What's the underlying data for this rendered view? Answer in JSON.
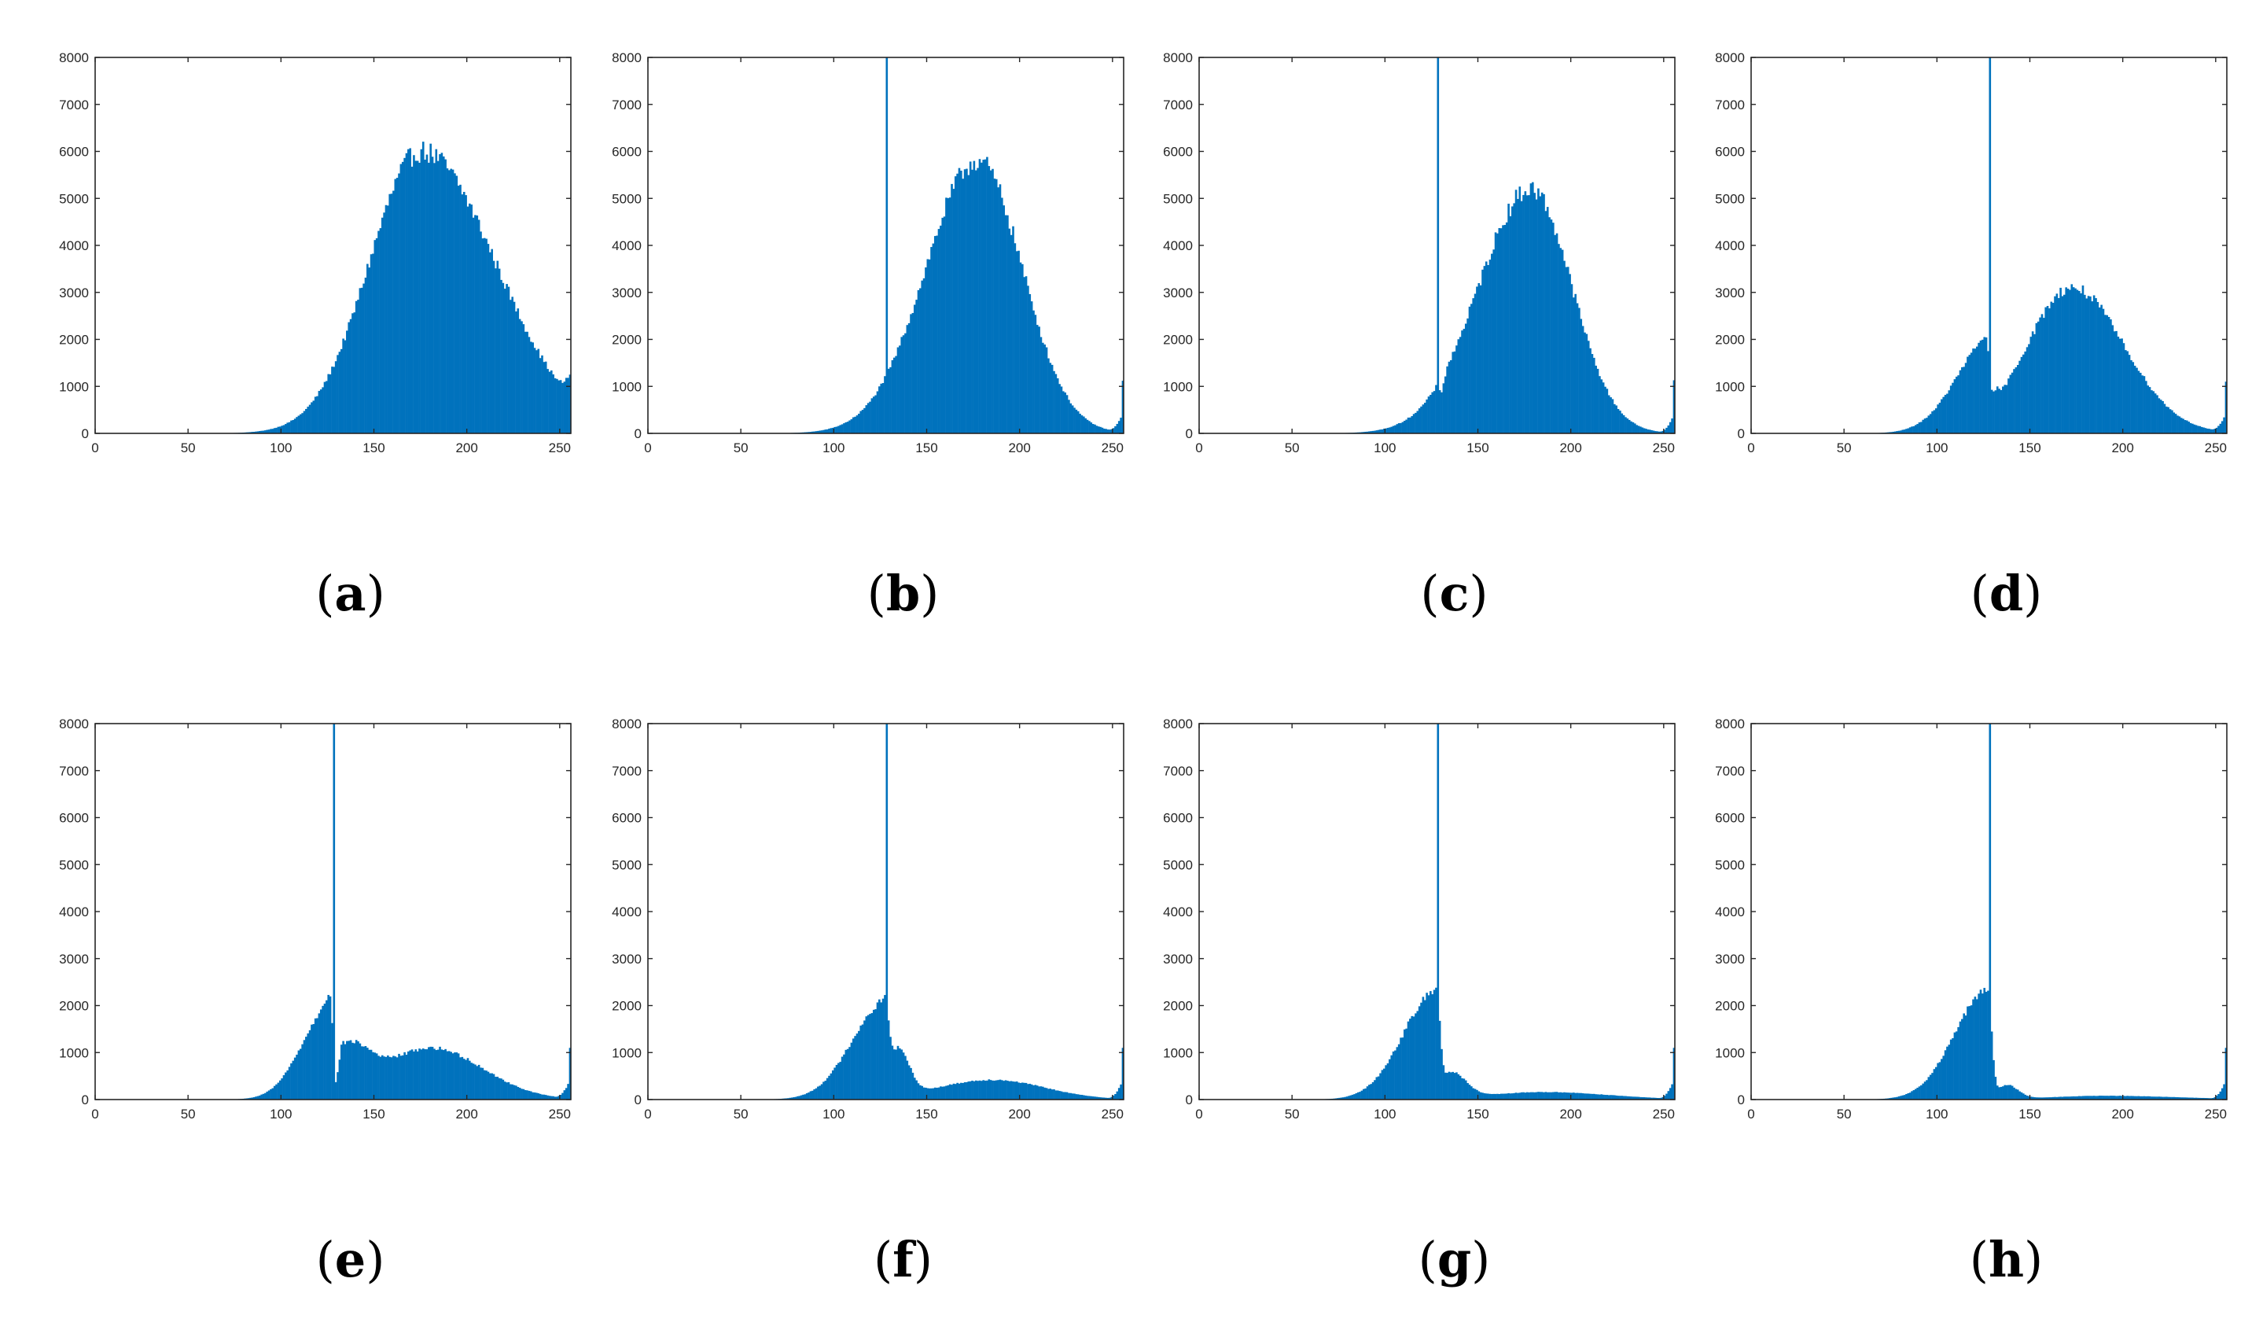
{
  "colors": {
    "bar": "#0072BD",
    "axis": "#262626",
    "background": "#FFFFFF"
  },
  "chart_data": [
    {
      "type": "bar",
      "label": "a",
      "xlim": [
        0,
        256
      ],
      "ylim": [
        0,
        8000
      ],
      "xticks": [
        0,
        50,
        100,
        150,
        200,
        250
      ],
      "yticks": [
        0,
        1000,
        2000,
        3000,
        4000,
        5000,
        6000,
        7000,
        8000
      ],
      "spike": null,
      "edge_value": 1250,
      "components": [
        [
          175,
          6000,
          28,
          40
        ]
      ],
      "dips": []
    },
    {
      "type": "bar",
      "label": "b",
      "xlim": [
        0,
        256
      ],
      "ylim": [
        0,
        8000
      ],
      "xticks": [
        0,
        50,
        100,
        150,
        200,
        250
      ],
      "yticks": [
        0,
        1000,
        2000,
        3000,
        4000,
        5000,
        6000,
        7000,
        8000
      ],
      "spike": {
        "bin": 128,
        "value": 8000
      },
      "edge_value": 1120,
      "components": [
        [
          177,
          5800,
          28,
          24
        ]
      ],
      "dips": []
    },
    {
      "type": "bar",
      "label": "c",
      "xlim": [
        0,
        256
      ],
      "ylim": [
        0,
        8000
      ],
      "xticks": [
        0,
        50,
        100,
        150,
        200,
        250
      ],
      "yticks": [
        0,
        1000,
        2000,
        3000,
        4000,
        5000,
        6000,
        7000,
        8000
      ],
      "spike": {
        "bin": 128,
        "value": 8000
      },
      "edge_value": 1130,
      "components": [
        [
          178,
          5200,
          28,
          22
        ]
      ],
      "dips": [
        [
          130,
          300,
          2
        ]
      ]
    },
    {
      "type": "bar",
      "label": "d",
      "xlim": [
        0,
        256
      ],
      "ylim": [
        0,
        8000
      ],
      "xticks": [
        0,
        50,
        100,
        150,
        200,
        250
      ],
      "yticks": [
        0,
        1000,
        2000,
        3000,
        4000,
        5000,
        6000,
        7000,
        8000
      ],
      "spike": {
        "bin": 128,
        "value": 8000
      },
      "edge_value": 1100,
      "components": [
        [
          126,
          1600,
          18,
          3
        ],
        [
          172,
          3100,
          24,
          28
        ]
      ],
      "dips": [
        [
          129,
          700,
          2
        ]
      ]
    },
    {
      "type": "bar",
      "label": "e",
      "xlim": [
        0,
        256
      ],
      "ylim": [
        0,
        8000
      ],
      "xticks": [
        0,
        50,
        100,
        150,
        200,
        250
      ],
      "yticks": [
        0,
        1000,
        2000,
        3000,
        4000,
        5000,
        6000,
        7000,
        8000
      ],
      "spike": {
        "bin": 128,
        "value": 8000
      },
      "edge_value": 1100,
      "components": [
        [
          125,
          1800,
          15,
          3
        ],
        [
          135,
          1000,
          7,
          12
        ],
        [
          180,
          1100,
          25,
          28
        ]
      ],
      "dips": [
        [
          129,
          1200,
          2
        ]
      ]
    },
    {
      "type": "bar",
      "label": "f",
      "xlim": [
        0,
        256
      ],
      "ylim": [
        0,
        8000
      ],
      "xticks": [
        0,
        50,
        100,
        150,
        200,
        250
      ],
      "yticks": [
        0,
        1000,
        2000,
        3000,
        4000,
        5000,
        6000,
        7000,
        8000
      ],
      "spike": {
        "bin": 128,
        "value": 8000
      },
      "edge_value": 1100,
      "components": [
        [
          127,
          2000,
          18,
          2
        ],
        [
          134,
          1000,
          4,
          6
        ],
        [
          185,
          420,
          30,
          28
        ]
      ],
      "dips": []
    },
    {
      "type": "bar",
      "label": "g",
      "xlim": [
        0,
        256
      ],
      "ylim": [
        0,
        8000
      ],
      "xticks": [
        0,
        50,
        100,
        150,
        200,
        250
      ],
      "yticks": [
        0,
        1000,
        2000,
        3000,
        4000,
        5000,
        6000,
        7000,
        8000
      ],
      "spike": {
        "bin": 128,
        "value": 8000
      },
      "edge_value": 1100,
      "components": [
        [
          127,
          2250,
          18,
          2
        ],
        [
          135,
          550,
          5,
          8
        ],
        [
          185,
          160,
          30,
          35
        ]
      ],
      "dips": []
    },
    {
      "type": "bar",
      "label": "h",
      "xlim": [
        0,
        256
      ],
      "ylim": [
        0,
        8000
      ],
      "xticks": [
        0,
        50,
        100,
        150,
        200,
        250
      ],
      "yticks": [
        0,
        1000,
        2000,
        3000,
        4000,
        5000,
        6000,
        7000,
        8000
      ],
      "spike": {
        "bin": 128,
        "value": 8000
      },
      "edge_value": 1100,
      "components": [
        [
          127,
          2300,
          18,
          2
        ],
        [
          137,
          300,
          5,
          6
        ],
        [
          190,
          80,
          30,
          40
        ]
      ],
      "dips": []
    }
  ]
}
